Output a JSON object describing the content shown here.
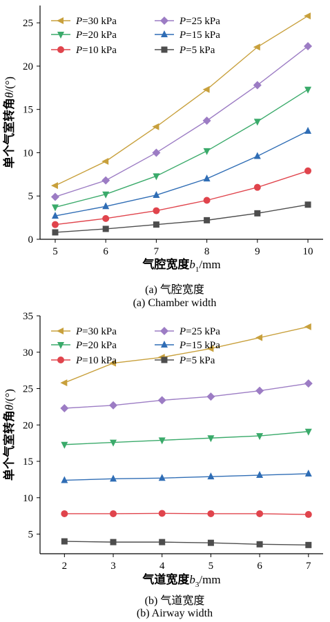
{
  "chart_data": [
    {
      "type": "line",
      "caption_cn": "(a) 气腔宽度",
      "caption_en": "(a) Chamber width",
      "xlabel_main": "气腔宽度",
      "xlabel_var": "b",
      "xlabel_sub": "1",
      "xlabel_unit": "/mm",
      "ylabel_main": "单个气室转角",
      "ylabel_var": "θ",
      "ylabel_unit": "/(°)",
      "x": [
        5,
        6,
        7,
        8,
        9,
        10
      ],
      "xlim": [
        4.7,
        10.3
      ],
      "ylim": [
        0,
        27
      ],
      "xticks": [
        5,
        6,
        7,
        8,
        9,
        10
      ],
      "yticks": [
        0,
        5,
        10,
        15,
        20,
        25
      ],
      "legend_position": "top",
      "series": [
        {
          "name": "P=30 kPa",
          "var": "P",
          "label": "=30 kPa",
          "color": "#c8a03c",
          "marker": "triangle-left",
          "values": [
            6.2,
            9.0,
            13.0,
            17.3,
            22.2,
            25.8
          ]
        },
        {
          "name": "P=25 kPa",
          "var": "P",
          "label": "=25 kPa",
          "color": "#9c7cc4",
          "marker": "diamond",
          "values": [
            4.9,
            6.8,
            10.0,
            13.7,
            17.8,
            22.3
          ]
        },
        {
          "name": "P=20 kPa",
          "var": "P",
          "label": "=20 kPa",
          "color": "#3aaa6a",
          "marker": "triangle-down",
          "values": [
            3.7,
            5.2,
            7.3,
            10.2,
            13.6,
            17.3
          ]
        },
        {
          "name": "P=15 kPa",
          "var": "P",
          "label": "=15 kPa",
          "color": "#2f6db5",
          "marker": "triangle-up",
          "values": [
            2.7,
            3.8,
            5.1,
            7.0,
            9.6,
            12.5
          ]
        },
        {
          "name": "P=10 kPa",
          "var": "P",
          "label": "=10 kPa",
          "color": "#e0444c",
          "marker": "circle",
          "values": [
            1.7,
            2.4,
            3.3,
            4.5,
            6.0,
            7.9
          ]
        },
        {
          "name": "P=5 kPa",
          "var": "P",
          "label": "=5 kPa",
          "color": "#4d4d4d",
          "marker": "square",
          "values": [
            0.8,
            1.2,
            1.7,
            2.2,
            3.0,
            4.0
          ]
        }
      ]
    },
    {
      "type": "line",
      "caption_cn": "(b) 气道宽度",
      "caption_en": "(b) Airway width",
      "xlabel_main": "气道宽度",
      "xlabel_var": "b",
      "xlabel_sub": "3",
      "xlabel_unit": "/mm",
      "ylabel_main": "单个气室转角",
      "ylabel_var": "θ",
      "ylabel_unit": "/(°)",
      "x": [
        2,
        3,
        4,
        5,
        6,
        7
      ],
      "xlim": [
        1.5,
        7.3
      ],
      "ylim": [
        2.3,
        35
      ],
      "xticks": [
        2,
        3,
        4,
        5,
        6,
        7
      ],
      "yticks": [
        5,
        10,
        15,
        20,
        25,
        30,
        35
      ],
      "legend_position": "top",
      "series": [
        {
          "name": "P=30 kPa",
          "var": "P",
          "label": "=30 kPa",
          "color": "#c8a03c",
          "marker": "triangle-left",
          "values": [
            25.8,
            28.5,
            29.3,
            30.5,
            32.0,
            33.5
          ]
        },
        {
          "name": "P=25 kPa",
          "var": "P",
          "label": "=25 kPa",
          "color": "#9c7cc4",
          "marker": "diamond",
          "values": [
            22.3,
            22.7,
            23.4,
            23.9,
            24.7,
            25.7
          ]
        },
        {
          "name": "P=20 kPa",
          "var": "P",
          "label": "=20 kPa",
          "color": "#3aaa6a",
          "marker": "triangle-down",
          "values": [
            17.3,
            17.6,
            17.9,
            18.2,
            18.5,
            19.1
          ]
        },
        {
          "name": "P=15 kPa",
          "var": "P",
          "label": "=15 kPa",
          "color": "#2f6db5",
          "marker": "triangle-up",
          "values": [
            12.4,
            12.6,
            12.7,
            12.9,
            13.1,
            13.3
          ]
        },
        {
          "name": "P=10 kPa",
          "var": "P",
          "label": "=10 kPa",
          "color": "#e0444c",
          "marker": "circle",
          "values": [
            7.8,
            7.8,
            7.85,
            7.8,
            7.8,
            7.7
          ]
        },
        {
          "name": "P=5 kPa",
          "var": "P",
          "label": "=5 kPa",
          "color": "#4d4d4d",
          "marker": "square",
          "values": [
            4.0,
            3.9,
            3.9,
            3.8,
            3.6,
            3.5
          ]
        }
      ]
    }
  ]
}
